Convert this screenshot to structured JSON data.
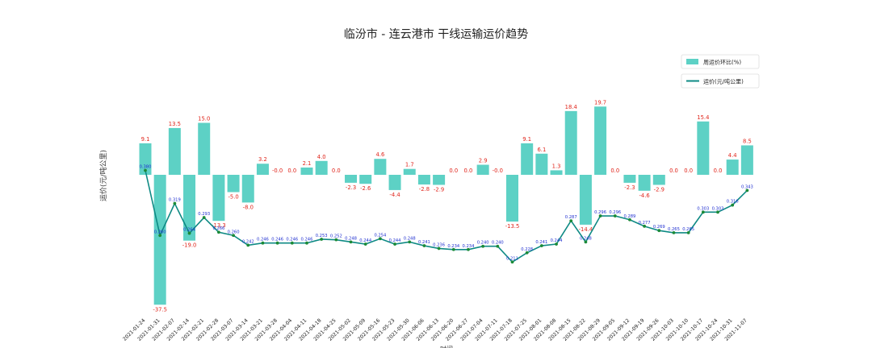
{
  "chart_data": {
    "type": "bar+line",
    "title": "临汾市 - 连云港市 干线运输运价趋势",
    "ylabel": "运价(元/吨公里)",
    "xlabel": "时间",
    "legend": [
      "周运价环比(%)",
      "运价(元/吨公里)"
    ],
    "legend_position": "top-right",
    "colors": {
      "bar": "#5dd1c5",
      "line": "#0e8a84",
      "point": "#1c8a38",
      "bar_label": "#e0261c",
      "point_label": "#1f2fd0"
    },
    "categories": [
      "2021-01-24",
      "2021-01-31",
      "2021-02-07",
      "2021-02-14",
      "2021-02-21",
      "2021-02-28",
      "2021-03-07",
      "2021-03-14",
      "2021-03-21",
      "2021-03-28",
      "2021-04-04",
      "2021-04-11",
      "2021-04-18",
      "2021-04-25",
      "2021-05-02",
      "2021-05-09",
      "2021-05-16",
      "2021-05-23",
      "2021-05-30",
      "2021-06-06",
      "2021-06-13",
      "2021-06-20",
      "2021-06-27",
      "2021-07-04",
      "2021-07-11",
      "2021-07-18",
      "2021-07-25",
      "2021-08-01",
      "2021-08-08",
      "2021-08-15",
      "2021-08-22",
      "2021-08-29",
      "2021-09-05",
      "2021-09-12",
      "2021-09-19",
      "2021-09-26",
      "2021-10-03",
      "2021-10-10",
      "2021-10-17",
      "2021-10-24",
      "2021-10-31",
      "2021-11-07"
    ],
    "series": [
      {
        "name": "周运价环比(%)",
        "type": "bar",
        "ylim": [
          -40,
          25
        ],
        "values": [
          9.1,
          -37.5,
          13.5,
          -19.0,
          15.0,
          -13.3,
          -5.0,
          -8.0,
          3.2,
          -0.0,
          0.0,
          2.1,
          4.0,
          0.0,
          -2.3,
          -2.6,
          4.6,
          -4.4,
          1.7,
          -2.8,
          -2.9,
          0.0,
          0.0,
          2.9,
          -0.0,
          -13.5,
          9.1,
          6.1,
          1.3,
          18.4,
          -14.4,
          19.7,
          0.0,
          -2.3,
          -4.6,
          -2.9,
          0.0,
          0.0,
          15.4,
          0.0,
          4.4,
          8.5
        ],
        "labels": [
          "9.1",
          "-37.5",
          "13.5",
          "-19.0",
          "15.0",
          "-13.3",
          "-5.0",
          "-8.0",
          "3.2",
          "-0.0",
          "0.0",
          "2.1",
          "4.0",
          "0.0",
          "-2.3",
          "-2.6",
          "4.6",
          "-4.4",
          "1.7",
          "-2.8",
          "-2.9",
          "0.0",
          "0.0",
          "2.9",
          "-0.0",
          "-13.5",
          "9.1",
          "6.1",
          "1.3",
          "18.4",
          "-14.4",
          "19.7",
          "0.0",
          "-2.3",
          "-4.6",
          "-2.9",
          "0.0",
          "0.0",
          "15.4",
          "0.0",
          "4.4",
          "8.5"
        ]
      },
      {
        "name": "运价(元/吨公里)",
        "type": "line",
        "ylim": [
          0.12,
          0.5
        ],
        "values": [
          0.38,
          0.26,
          0.319,
          0.264,
          0.293,
          0.266,
          0.26,
          0.242,
          0.246,
          0.246,
          0.246,
          0.246,
          0.253,
          0.252,
          0.248,
          0.244,
          0.254,
          0.244,
          0.248,
          0.241,
          0.236,
          0.234,
          0.234,
          0.24,
          0.24,
          0.211,
          0.228,
          0.241,
          0.244,
          0.287,
          0.248,
          0.296,
          0.296,
          0.289,
          0.277,
          0.269,
          0.265,
          0.265,
          0.303,
          0.303,
          0.316,
          0.343
        ],
        "labels": [
          "0.380",
          "0.260",
          "0.319",
          "0.264",
          "0.293",
          "0.266",
          "0.260",
          "0.242",
          "0.246",
          "0.246",
          "0.246",
          "0.246",
          "0.253",
          "0.252",
          "0.248",
          "0.244",
          "0.254",
          "0.244",
          "0.248",
          "0.241",
          "0.236",
          "0.234",
          "0.234",
          "0.240",
          "0.240",
          "0.211",
          "0.228",
          "0.241",
          "0.244",
          "0.287",
          "0.248",
          "0.296",
          "0.296",
          "0.289",
          "0.277",
          "0.269",
          "0.265",
          "0.265",
          "0.303",
          "0.303",
          "0.316",
          "0.343"
        ]
      }
    ]
  }
}
